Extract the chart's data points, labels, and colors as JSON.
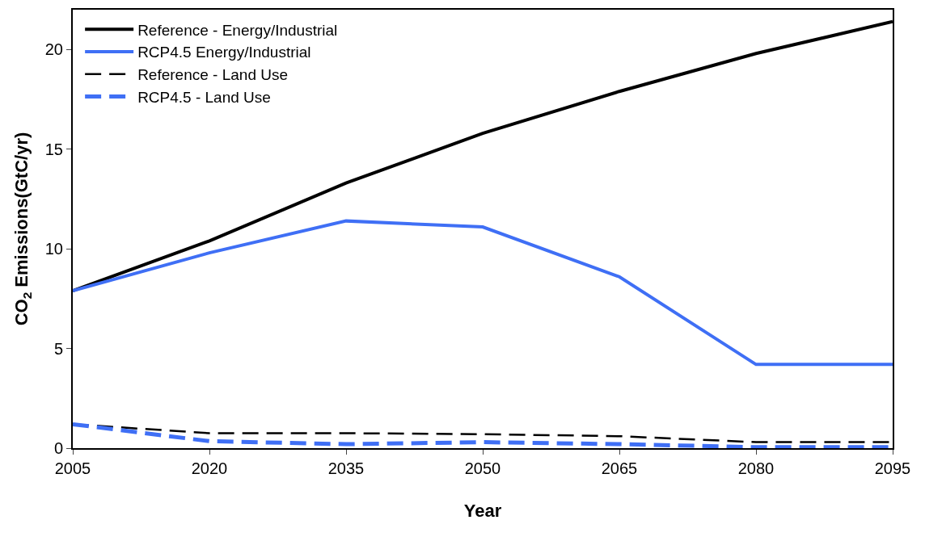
{
  "chart_data": {
    "type": "line",
    "xlabel": "Year",
    "ylabel": "CO$_{2}$ Emissions(GtC/yr)",
    "x": [
      2005,
      2020,
      2035,
      2050,
      2065,
      2080,
      2095
    ],
    "series": [
      {
        "name": "Reference - Energy/Industrial",
        "color": "#000000",
        "line_style": "solid",
        "values": [
          7.9,
          10.4,
          13.3,
          15.8,
          17.9,
          19.8,
          21.4
        ]
      },
      {
        "name": "RCP4.5 Energy/Industrial",
        "color": "#3f6ff5",
        "line_style": "solid",
        "values": [
          7.9,
          9.8,
          11.4,
          11.1,
          8.6,
          4.2,
          4.2
        ]
      },
      {
        "name": "Reference - Land Use",
        "color": "#000000",
        "line_style": "dashed",
        "values": [
          1.2,
          0.75,
          0.75,
          0.7,
          0.6,
          0.3,
          0.3
        ]
      },
      {
        "name": "RCP4.5 - Land Use",
        "color": "#3f6ff5",
        "line_style": "dashed",
        "values": [
          1.2,
          0.35,
          0.2,
          0.3,
          0.2,
          0.05,
          0.05
        ]
      }
    ],
    "xlim": [
      2005,
      2095
    ],
    "xticks": [
      2005,
      2020,
      2035,
      2050,
      2065,
      2080,
      2095
    ],
    "ylim": [
      0,
      22
    ],
    "yticks": [
      0,
      5,
      10,
      15,
      20
    ],
    "legend": "top left",
    "marker": "none"
  }
}
